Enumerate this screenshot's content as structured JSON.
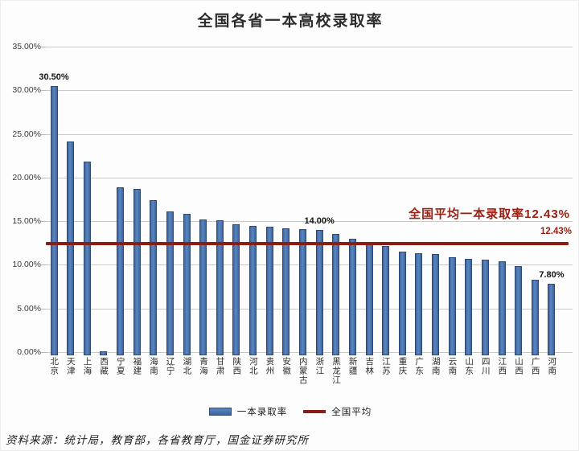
{
  "title": "全国各省一本高校录取率",
  "colors": {
    "bar_fill": "#4a77b0",
    "bar_border": "#2c4a78",
    "average_line": "#8e1c12",
    "annotation_red": "#9b2013",
    "gridline": "#c9c9c9"
  },
  "chart_data": {
    "type": "bar",
    "title": "全国各省一本高校录取率",
    "ylabel": "",
    "xlabel": "",
    "ylim": [
      0,
      35
    ],
    "ytick_step": 5,
    "ytick_labels": [
      "35.00%",
      "30.00%",
      "25.00%",
      "20.00%",
      "15.00%",
      "10.00%",
      "5.00%",
      "0.00%"
    ],
    "grid": true,
    "categories": [
      "北京",
      "天津",
      "上海",
      "西藏",
      "宁夏",
      "福建",
      "海南",
      "辽宁",
      "湖北",
      "青海",
      "甘肃",
      "陕西",
      "河北",
      "贵州",
      "安徽",
      "内蒙古",
      "浙江",
      "黑龙江",
      "新疆",
      "吉林",
      "江苏",
      "重庆",
      "广东",
      "湖南",
      "云南",
      "山东",
      "四川",
      "江西",
      "山西",
      "广西",
      "河南"
    ],
    "series": [
      {
        "name": "一本录取率",
        "values": [
          30.5,
          24.1,
          21.8,
          null,
          18.9,
          18.7,
          17.4,
          16.1,
          15.8,
          15.2,
          15.1,
          14.6,
          14.5,
          14.4,
          14.2,
          14.1,
          14.0,
          13.5,
          13.0,
          12.5,
          12.2,
          11.5,
          11.3,
          11.2,
          10.9,
          10.7,
          10.6,
          10.4,
          9.9,
          8.3,
          7.8
        ]
      }
    ],
    "point_labels": [
      {
        "category": "北京",
        "text": "30.50%"
      },
      {
        "category": "浙江",
        "text": "14.00%"
      },
      {
        "category": "河南",
        "text": "7.80%"
      }
    ],
    "average_line": {
      "value": 12.43,
      "label": "全国平均"
    },
    "annotations": {
      "avg_text": "全国平均一本录取率12.43%",
      "avg_value_text": "12.43%"
    },
    "legend": [
      {
        "label": "一本录取率",
        "type": "bar"
      },
      {
        "label": "全国平均",
        "type": "line"
      }
    ],
    "legend_position": "bottom"
  },
  "source_note": "资料来源：统计局，教育部，各省教育厅，国金证券研究所"
}
